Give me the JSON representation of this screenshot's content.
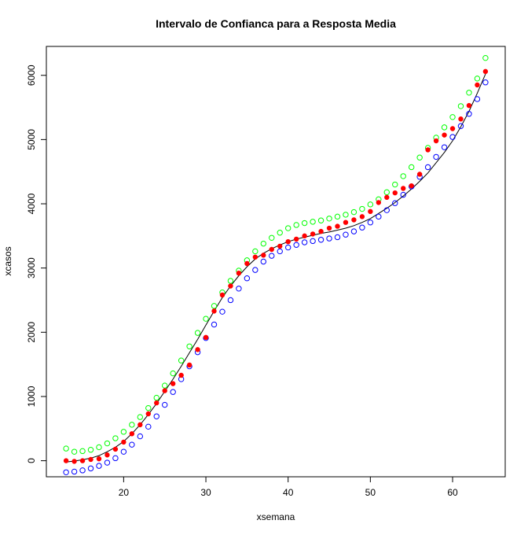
{
  "chart_data": {
    "type": "scatter",
    "title": "Intervalo de Confianca para a Resposta Media",
    "xlabel": "xsemana",
    "ylabel": "xcasos",
    "xlim": [
      10.6,
      66.4
    ],
    "ylim": [
      -250,
      6450
    ],
    "xticks": [
      20,
      30,
      40,
      50,
      60
    ],
    "yticks": [
      0,
      1000,
      2000,
      3000,
      4000,
      5000,
      6000
    ],
    "grid": false,
    "legend": "none",
    "x": [
      13,
      14,
      15,
      16,
      17,
      18,
      19,
      20,
      21,
      22,
      23,
      24,
      25,
      26,
      27,
      28,
      29,
      30,
      31,
      32,
      33,
      34,
      35,
      36,
      37,
      38,
      39,
      40,
      41,
      42,
      43,
      44,
      45,
      46,
      47,
      48,
      49,
      50,
      51,
      52,
      53,
      54,
      55,
      56,
      57,
      58,
      59,
      60,
      61,
      62,
      63,
      64
    ],
    "series": [
      {
        "style": "open-circle",
        "color": "#00ff00",
        "values": [
          190,
          140,
          150,
          170,
          210,
          270,
          350,
          450,
          560,
          680,
          820,
          980,
          1170,
          1360,
          1560,
          1780,
          1990,
          2210,
          2410,
          2620,
          2800,
          2960,
          3120,
          3260,
          3380,
          3470,
          3550,
          3620,
          3670,
          3700,
          3720,
          3740,
          3770,
          3800,
          3830,
          3870,
          3920,
          3990,
          4070,
          4180,
          4300,
          4430,
          4570,
          4720,
          4870,
          5030,
          5190,
          5350,
          5520,
          5730,
          5950,
          6270
        ]
      },
      {
        "style": "open-circle",
        "color": "#0000ff",
        "values": [
          -180,
          -170,
          -150,
          -120,
          -80,
          -30,
          40,
          140,
          250,
          380,
          530,
          690,
          870,
          1070,
          1270,
          1470,
          1690,
          1910,
          2120,
          2320,
          2500,
          2680,
          2840,
          2970,
          3100,
          3190,
          3260,
          3320,
          3360,
          3400,
          3420,
          3440,
          3460,
          3480,
          3520,
          3570,
          3630,
          3710,
          3800,
          3900,
          4010,
          4140,
          4270,
          4420,
          4570,
          4730,
          4880,
          5040,
          5210,
          5400,
          5630,
          5890
        ]
      },
      {
        "style": "filled-circle",
        "color": "#ff0000",
        "values": [
          0,
          -10,
          0,
          20,
          30,
          90,
          180,
          290,
          420,
          560,
          730,
          900,
          1090,
          1200,
          1330,
          1490,
          1730,
          1920,
          2330,
          2580,
          2720,
          2920,
          3070,
          3170,
          3200,
          3290,
          3340,
          3410,
          3450,
          3500,
          3530,
          3570,
          3620,
          3650,
          3710,
          3750,
          3800,
          3880,
          4020,
          4100,
          4170,
          4240,
          4280,
          4460,
          4840,
          4980,
          5070,
          5170,
          5320,
          5530,
          5850,
          6060
        ]
      },
      {
        "style": "line",
        "color": "#000000",
        "values": [
          -20,
          -5,
          15,
          40,
          80,
          140,
          210,
          300,
          420,
          560,
          720,
          890,
          1080,
          1270,
          1470,
          1680,
          1890,
          2110,
          2330,
          2540,
          2720,
          2880,
          3020,
          3140,
          3230,
          3300,
          3360,
          3410,
          3450,
          3480,
          3510,
          3540,
          3560,
          3590,
          3620,
          3660,
          3710,
          3770,
          3850,
          3930,
          4020,
          4120,
          4230,
          4350,
          4480,
          4640,
          4800,
          4980,
          5200,
          5440,
          5720,
          6020
        ]
      }
    ]
  }
}
